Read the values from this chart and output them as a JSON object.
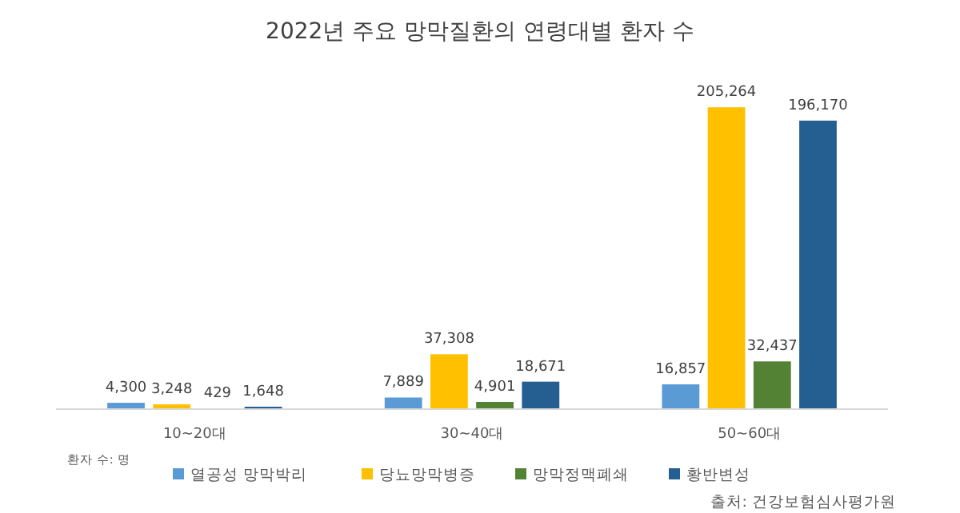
{
  "chart_data": {
    "type": "bar",
    "title": "2022년 주요 망막질환의 연령대별 환자 수",
    "categories": [
      "10~20대",
      "30~40대",
      "50~60대"
    ],
    "series": [
      {
        "name": "열공성 망막박리",
        "color": "#5b9bd5",
        "values": [
          4300,
          7889,
          16857
        ],
        "value_labels": [
          "4,300",
          "7,889",
          "16,857"
        ]
      },
      {
        "name": "당뇨망막병증",
        "color": "#ffc000",
        "values": [
          3248,
          37308,
          205264
        ],
        "value_labels": [
          "3,248",
          "37,308",
          "205,264"
        ]
      },
      {
        "name": "망막정맥폐쇄",
        "color": "#548235",
        "values": [
          429,
          4901,
          32437
        ],
        "value_labels": [
          "429",
          "4,901",
          "32,437"
        ]
      },
      {
        "name": "황반변성",
        "color": "#255e91",
        "values": [
          1648,
          18671,
          196170
        ],
        "value_labels": [
          "1,648",
          "18,671",
          "196,170"
        ]
      }
    ],
    "legend": "bottom",
    "annotations": [
      "환자 수: 명",
      "출처: 건강보험심사평가원"
    ]
  }
}
